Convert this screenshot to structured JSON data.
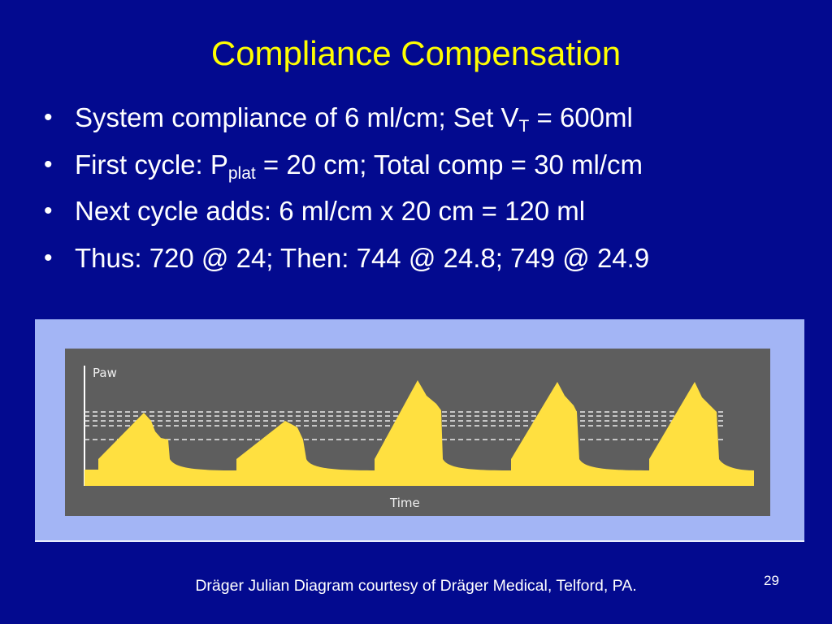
{
  "slide": {
    "title": "Compliance Compensation",
    "bullets": [
      {
        "marker": "•",
        "text_before": "System compliance of 6 ml/cm; Set V",
        "subscript": "T",
        "text_after": " = 600ml"
      },
      {
        "marker": "•",
        "text_before": "First cycle: P",
        "subscript": "plat",
        "text_after": " = 20 cm; Total comp = 30 ml/cm"
      },
      {
        "marker": "•",
        "text_before": "Next cycle adds:  6 ml/cm x 20 cm = 120 ml",
        "subscript": "",
        "text_after": ""
      },
      {
        "marker": "•",
        "text_before": "Thus: 720 @ 24;  Then: 744 @ 24.8; 749 @ 24.9",
        "subscript": "",
        "text_after": ""
      }
    ],
    "diagram": {
      "y_axis_label": "Paw",
      "x_axis_label": "Time"
    },
    "caption": "Dräger Julian Diagram courtesy of Dräger Medical, Telford, PA.",
    "page_number": "29"
  },
  "colors": {
    "background": "#030a8f",
    "title": "#ffff00",
    "body_text": "#ffffff",
    "diagram_frame": "#a3b5f5",
    "diagram_panel": "#5e5e5e",
    "waveform": "#ffe040",
    "dashed_lines": "#e8e8e8"
  }
}
